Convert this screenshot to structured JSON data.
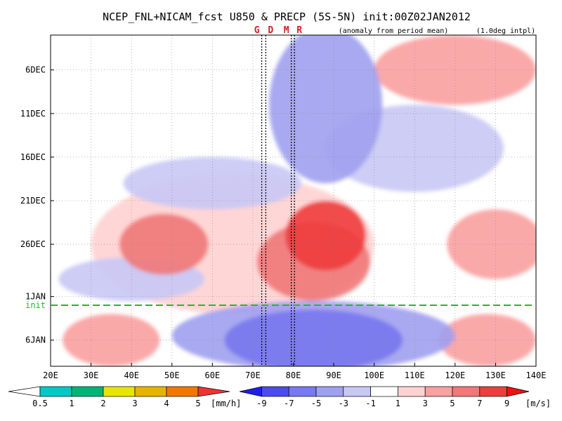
{
  "chart_data": {
    "type": "heatmap",
    "title": "NCEP_FNL+NICAM_fcst U850 & PRECP (5S-5N) init:00Z02JAN2012",
    "subtitle_left": "(anomaly from period mean)",
    "subtitle_right": "(1.0deg intpl)",
    "xlim": [
      20,
      140
    ],
    "x_ticks": [
      "20E",
      "30E",
      "40E",
      "50E",
      "60E",
      "70E",
      "80E",
      "90E",
      "100E",
      "110E",
      "120E",
      "130E",
      "140E"
    ],
    "y_ticks": [
      {
        "label": "6DEC",
        "day": 5
      },
      {
        "label": "11DEC",
        "day": 10
      },
      {
        "label": "16DEC",
        "day": 15
      },
      {
        "label": "21DEC",
        "day": 20
      },
      {
        "label": "26DEC",
        "day": 25
      },
      {
        "label": "1JAN",
        "day": 31
      },
      {
        "label": "6JAN",
        "day": 36
      }
    ],
    "ylim_day": [
      1,
      39
    ],
    "init": {
      "label": "init",
      "day": 32
    },
    "markers": [
      {
        "label": "G",
        "lon": 72.2
      },
      {
        "label": "D",
        "lon": 73.2
      },
      {
        "label": "M",
        "lon": 79.5
      },
      {
        "label": "R",
        "lon": 80.3
      }
    ],
    "u850_features": [
      {
        "lon": 48,
        "day": 25,
        "rlon": 11,
        "rday": 3.5,
        "value": 5
      },
      {
        "lon": 88,
        "day": 24,
        "rlon": 10,
        "rday": 4,
        "value": 7
      },
      {
        "lon": 85,
        "day": 27,
        "rlon": 14,
        "rday": 4.5,
        "value": 5
      },
      {
        "lon": 65,
        "day": 25,
        "rlon": 35,
        "rday": 8,
        "value": 2
      },
      {
        "lon": 120,
        "day": 5,
        "rlon": 20,
        "rday": 4,
        "value": 3
      },
      {
        "lon": 130,
        "day": 25,
        "rlon": 12,
        "rday": 4,
        "value": 3
      },
      {
        "lon": 35,
        "day": 36,
        "rlon": 12,
        "rday": 3,
        "value": 3
      },
      {
        "lon": 128,
        "day": 36,
        "rlon": 12,
        "rday": 3,
        "value": 3
      },
      {
        "lon": 85,
        "day": 36,
        "rlon": 22,
        "rday": 3.5,
        "value": -7
      },
      {
        "lon": 85,
        "day": 35.5,
        "rlon": 35,
        "rday": 4,
        "value": -4
      },
      {
        "lon": 88,
        "day": 9,
        "rlon": 14,
        "rday": 9,
        "value": -4
      },
      {
        "lon": 110,
        "day": 14,
        "rlon": 22,
        "rday": 5,
        "value": -3
      },
      {
        "lon": 60,
        "day": 18,
        "rlon": 22,
        "rday": 3,
        "value": -2
      },
      {
        "lon": 40,
        "day": 29,
        "rlon": 18,
        "rday": 2.5,
        "value": -2
      }
    ],
    "precip_legend": {
      "colors": [
        "#00c8c8",
        "#00b478",
        "#e6e600",
        "#e6b400",
        "#f07800",
        "#f03232"
      ],
      "labels": [
        "0.5",
        "1",
        "2",
        "3",
        "4",
        "5"
      ],
      "unit": "[mm/h]"
    },
    "u_legend": {
      "colors": [
        "#1e1ee6",
        "#4b4bf0",
        "#7878f0",
        "#a0a0f0",
        "#c8c8f5",
        "#ffffff",
        "#ffd2d2",
        "#faa0a0",
        "#f07878",
        "#f03c3c",
        "#e61414"
      ],
      "labels": [
        "-9",
        "-7",
        "-5",
        "-3",
        "-1",
        "1",
        "3",
        "5",
        "7",
        "9"
      ],
      "unit": "[m/s]"
    }
  }
}
